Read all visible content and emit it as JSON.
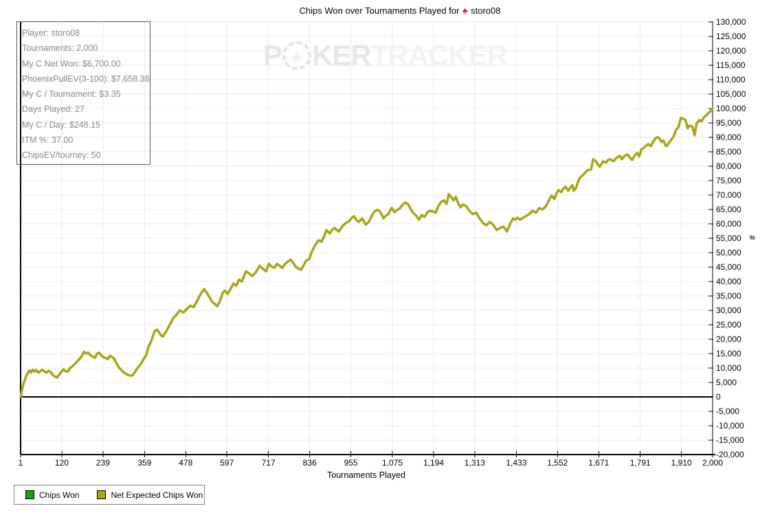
{
  "title": {
    "prefix": "Chips Won over Tournaments Played for",
    "player": "storo08",
    "icon": "red-spade"
  },
  "watermark": {
    "p": "P",
    "ker": "KER",
    "tracker": "TRACKER",
    "chip_icon": "poker-chip-spade"
  },
  "stats_panel": {
    "rows": [
      "Player: storo08",
      "Tournaments: 2,000",
      "My C Net Won: $6,700.00",
      "PhoenixPullEV(3-100): $7,658.38",
      "My C / Tournament: $3.35",
      "Days Played: 27",
      "My C / Day: $248.15",
      "ITM %: 37.00",
      "ChipsEV/tourney: 50"
    ]
  },
  "legend": {
    "items": [
      {
        "label": "Chips Won",
        "color": "#17a017"
      },
      {
        "label": "Net Expected Chips Won",
        "color": "#a9a518"
      }
    ]
  },
  "colors": {
    "line_olive": "#a9a518",
    "legend_green": "#17a017",
    "grid": "#eaeaea",
    "axis": "#000000",
    "stats_text": "#898989",
    "watermark_dark": "#e6e6e6",
    "watermark_light": "#f2f2f2",
    "title_spade_red": "#cf2428"
  },
  "chart_data": {
    "type": "line",
    "title": "Chips Won over Tournaments Played for storo08",
    "xlabel": "Tournaments Played",
    "ylabel": "#",
    "grid": true,
    "legend_position": "bottom-left",
    "x_range": [
      1,
      2000
    ],
    "y_range": [
      -20000,
      130000
    ],
    "y_tick_step": 5000,
    "x_ticks": [
      1,
      120,
      239,
      359,
      478,
      597,
      717,
      836,
      955,
      1075,
      1194,
      1313,
      1433,
      1552,
      1671,
      1791,
      1910,
      2000
    ],
    "x_tick_labels": [
      "1",
      "120",
      "239",
      "359",
      "478",
      "597",
      "717",
      "836",
      "955",
      "1,075",
      "1,194",
      "1,313",
      "1,433",
      "1,552",
      "1,671",
      "1,791",
      "1,910",
      "2,000"
    ],
    "y_tick_labels": [
      "130,000",
      "125,000",
      "120,000",
      "115,000",
      "110,000",
      "105,000",
      "100,000",
      "95,000",
      "90,000",
      "85,000",
      "80,000",
      "75,000",
      "70,000",
      "65,000",
      "60,000",
      "55,000",
      "50,000",
      "45,000",
      "40,000",
      "35,000",
      "30,000",
      "25,000",
      "20,000",
      "15,000",
      "10,000",
      "5,000",
      "0",
      "-5,000",
      "-10,000",
      "-15,000",
      "-20,000"
    ],
    "series": [
      {
        "name": "Chips Won",
        "color": "#17a017",
        "visible": false,
        "points": []
      },
      {
        "name": "Net Expected Chips Won",
        "color": "#a9a518",
        "visible": true,
        "points": [
          [
            1,
            0
          ],
          [
            3,
            1200
          ],
          [
            6,
            2900
          ],
          [
            9,
            4400
          ],
          [
            12,
            5500
          ],
          [
            16,
            6900
          ],
          [
            20,
            7900
          ],
          [
            26,
            9200
          ],
          [
            31,
            8400
          ],
          [
            36,
            9400
          ],
          [
            41,
            8800
          ],
          [
            46,
            9300
          ],
          [
            52,
            8400
          ],
          [
            58,
            8900
          ],
          [
            64,
            9400
          ],
          [
            70,
            8800
          ],
          [
            76,
            8400
          ],
          [
            82,
            9100
          ],
          [
            88,
            8600
          ],
          [
            95,
            7500
          ],
          [
            101,
            7000
          ],
          [
            106,
            6700
          ],
          [
            112,
            7600
          ],
          [
            118,
            8600
          ],
          [
            124,
            9500
          ],
          [
            130,
            9000
          ],
          [
            137,
            8700
          ],
          [
            143,
            9900
          ],
          [
            150,
            10600
          ],
          [
            157,
            11300
          ],
          [
            163,
            12100
          ],
          [
            170,
            13000
          ],
          [
            177,
            14000
          ],
          [
            184,
            15700
          ],
          [
            190,
            15000
          ],
          [
            196,
            15400
          ],
          [
            203,
            14400
          ],
          [
            210,
            13900
          ],
          [
            216,
            13600
          ],
          [
            222,
            15000
          ],
          [
            228,
            15300
          ],
          [
            234,
            14400
          ],
          [
            240,
            13800
          ],
          [
            247,
            13500
          ],
          [
            253,
            13100
          ],
          [
            259,
            14250
          ],
          [
            266,
            13800
          ],
          [
            272,
            13050
          ],
          [
            279,
            11400
          ],
          [
            285,
            10200
          ],
          [
            292,
            9300
          ],
          [
            300,
            8400
          ],
          [
            310,
            7700
          ],
          [
            318,
            7350
          ],
          [
            325,
            7500
          ],
          [
            333,
            9000
          ],
          [
            340,
            10200
          ],
          [
            348,
            11400
          ],
          [
            356,
            13000
          ],
          [
            364,
            14500
          ],
          [
            370,
            17300
          ],
          [
            378,
            19250
          ],
          [
            388,
            22800
          ],
          [
            396,
            23300
          ],
          [
            406,
            21400
          ],
          [
            412,
            20900
          ],
          [
            422,
            22800
          ],
          [
            432,
            25000
          ],
          [
            442,
            27350
          ],
          [
            452,
            28550
          ],
          [
            461,
            30000
          ],
          [
            471,
            29250
          ],
          [
            481,
            30450
          ],
          [
            491,
            31650
          ],
          [
            501,
            31150
          ],
          [
            511,
            33300
          ],
          [
            521,
            35700
          ],
          [
            531,
            37350
          ],
          [
            539,
            36150
          ],
          [
            547,
            34500
          ],
          [
            555,
            32850
          ],
          [
            563,
            32150
          ],
          [
            569,
            31400
          ],
          [
            577,
            33300
          ],
          [
            585,
            36150
          ],
          [
            591,
            36850
          ],
          [
            599,
            35700
          ],
          [
            607,
            37350
          ],
          [
            616,
            39250
          ],
          [
            624,
            38550
          ],
          [
            632,
            40700
          ],
          [
            640,
            40000
          ],
          [
            652,
            43550
          ],
          [
            660,
            42850
          ],
          [
            670,
            41900
          ],
          [
            680,
            43100
          ],
          [
            692,
            45450
          ],
          [
            700,
            44500
          ],
          [
            710,
            43550
          ],
          [
            718,
            46150
          ],
          [
            726,
            45200
          ],
          [
            734,
            44750
          ],
          [
            741,
            46150
          ],
          [
            749,
            45450
          ],
          [
            757,
            44750
          ],
          [
            765,
            46150
          ],
          [
            773,
            46900
          ],
          [
            781,
            47600
          ],
          [
            789,
            46400
          ],
          [
            795,
            45200
          ],
          [
            803,
            44500
          ],
          [
            811,
            44050
          ],
          [
            819,
            45700
          ],
          [
            825,
            47150
          ],
          [
            835,
            47850
          ],
          [
            841,
            50000
          ],
          [
            851,
            52400
          ],
          [
            861,
            54300
          ],
          [
            870,
            53800
          ],
          [
            878,
            55700
          ],
          [
            884,
            57850
          ],
          [
            894,
            56650
          ],
          [
            902,
            58100
          ],
          [
            908,
            58550
          ],
          [
            920,
            57350
          ],
          [
            930,
            59050
          ],
          [
            940,
            60250
          ],
          [
            950,
            60950
          ],
          [
            958,
            62150
          ],
          [
            964,
            62650
          ],
          [
            972,
            61200
          ],
          [
            978,
            60700
          ],
          [
            988,
            61900
          ],
          [
            998,
            59750
          ],
          [
            1007,
            60700
          ],
          [
            1015,
            62650
          ],
          [
            1023,
            64300
          ],
          [
            1031,
            64800
          ],
          [
            1037,
            64550
          ],
          [
            1045,
            63100
          ],
          [
            1049,
            61900
          ],
          [
            1057,
            62900
          ],
          [
            1063,
            63350
          ],
          [
            1073,
            65500
          ],
          [
            1081,
            64050
          ],
          [
            1089,
            64800
          ],
          [
            1097,
            65500
          ],
          [
            1105,
            66700
          ],
          [
            1113,
            67400
          ],
          [
            1121,
            66700
          ],
          [
            1129,
            64800
          ],
          [
            1137,
            63600
          ],
          [
            1145,
            62650
          ],
          [
            1152,
            61450
          ],
          [
            1160,
            63100
          ],
          [
            1168,
            62400
          ],
          [
            1176,
            64050
          ],
          [
            1184,
            64550
          ],
          [
            1192,
            64300
          ],
          [
            1200,
            63850
          ],
          [
            1208,
            66200
          ],
          [
            1216,
            67650
          ],
          [
            1224,
            68150
          ],
          [
            1232,
            66950
          ],
          [
            1238,
            70300
          ],
          [
            1246,
            69100
          ],
          [
            1252,
            68150
          ],
          [
            1258,
            69350
          ],
          [
            1266,
            66950
          ],
          [
            1272,
            65750
          ],
          [
            1278,
            66700
          ],
          [
            1288,
            66200
          ],
          [
            1297,
            64550
          ],
          [
            1307,
            63350
          ],
          [
            1317,
            63850
          ],
          [
            1327,
            61900
          ],
          [
            1337,
            60250
          ],
          [
            1347,
            59500
          ],
          [
            1356,
            60700
          ],
          [
            1366,
            59750
          ],
          [
            1376,
            57850
          ],
          [
            1386,
            58550
          ],
          [
            1396,
            59050
          ],
          [
            1406,
            57350
          ],
          [
            1416,
            60250
          ],
          [
            1424,
            61900
          ],
          [
            1430,
            61450
          ],
          [
            1436,
            62150
          ],
          [
            1444,
            61450
          ],
          [
            1450,
            61900
          ],
          [
            1460,
            62650
          ],
          [
            1470,
            63350
          ],
          [
            1480,
            64550
          ],
          [
            1490,
            63850
          ],
          [
            1499,
            65500
          ],
          [
            1509,
            65000
          ],
          [
            1519,
            66200
          ],
          [
            1529,
            68600
          ],
          [
            1535,
            69800
          ],
          [
            1543,
            68600
          ],
          [
            1549,
            70500
          ],
          [
            1555,
            71700
          ],
          [
            1563,
            71000
          ],
          [
            1569,
            72200
          ],
          [
            1575,
            72900
          ],
          [
            1583,
            71450
          ],
          [
            1589,
            72650
          ],
          [
            1595,
            73400
          ],
          [
            1599,
            71450
          ],
          [
            1605,
            72400
          ],
          [
            1615,
            75750
          ],
          [
            1623,
            76700
          ],
          [
            1629,
            77400
          ],
          [
            1639,
            78600
          ],
          [
            1649,
            78850
          ],
          [
            1655,
            82400
          ],
          [
            1663,
            81700
          ],
          [
            1669,
            80500
          ],
          [
            1674,
            79800
          ],
          [
            1684,
            81700
          ],
          [
            1692,
            81200
          ],
          [
            1698,
            82150
          ],
          [
            1704,
            82400
          ],
          [
            1714,
            81700
          ],
          [
            1722,
            82900
          ],
          [
            1732,
            83600
          ],
          [
            1738,
            82400
          ],
          [
            1744,
            83350
          ],
          [
            1754,
            84100
          ],
          [
            1762,
            82900
          ],
          [
            1768,
            82150
          ],
          [
            1774,
            83600
          ],
          [
            1782,
            84550
          ],
          [
            1788,
            83350
          ],
          [
            1794,
            85750
          ],
          [
            1802,
            86450
          ],
          [
            1808,
            87150
          ],
          [
            1814,
            87650
          ],
          [
            1822,
            86950
          ],
          [
            1828,
            88400
          ],
          [
            1834,
            89550
          ],
          [
            1842,
            90050
          ],
          [
            1848,
            89350
          ],
          [
            1852,
            88400
          ],
          [
            1858,
            88850
          ],
          [
            1864,
            87150
          ],
          [
            1868,
            86950
          ],
          [
            1874,
            88150
          ],
          [
            1882,
            89350
          ],
          [
            1888,
            90500
          ],
          [
            1894,
            92450
          ],
          [
            1902,
            93650
          ],
          [
            1908,
            96750
          ],
          [
            1914,
            96500
          ],
          [
            1922,
            96000
          ],
          [
            1928,
            93150
          ],
          [
            1934,
            94100
          ],
          [
            1942,
            93650
          ],
          [
            1948,
            90750
          ],
          [
            1954,
            94800
          ],
          [
            1962,
            96000
          ],
          [
            1968,
            95550
          ],
          [
            1974,
            96750
          ],
          [
            1982,
            97700
          ],
          [
            1988,
            98400
          ],
          [
            1994,
            99200
          ],
          [
            2000,
            100000
          ]
        ]
      }
    ]
  }
}
